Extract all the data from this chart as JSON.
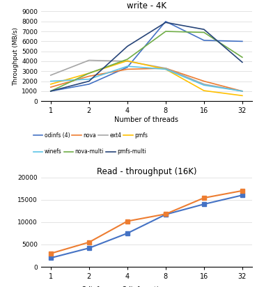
{
  "threads": [
    1,
    2,
    4,
    8,
    16,
    32
  ],
  "write_title": "write - 4K",
  "write_ylabel": "Throughput (MB/s)",
  "write_xlabel": "Number of threads",
  "write_ylim": [
    0,
    9000
  ],
  "write_yticks": [
    0,
    1000,
    2000,
    3000,
    4000,
    5000,
    6000,
    7000,
    8000,
    9000
  ],
  "series": {
    "odinfs (4)": {
      "values": [
        1000,
        1700,
        3400,
        8000,
        6100,
        6000
      ],
      "color": "#4472C4"
    },
    "nova": {
      "values": [
        1400,
        2500,
        3200,
        3300,
        2000,
        1000
      ],
      "color": "#ED7D31"
    },
    "ext4": {
      "values": [
        2600,
        4100,
        4000,
        3300,
        1700,
        1000
      ],
      "color": "#A5A5A5"
    },
    "pmfs": {
      "values": [
        1700,
        2800,
        4050,
        3200,
        1050,
        550
      ],
      "color": "#FFC000"
    },
    "winefs": {
      "values": [
        2000,
        2200,
        3500,
        3200,
        1600,
        1000
      ],
      "color": "#5BC3E6"
    },
    "nova-multi": {
      "values": [
        1000,
        2800,
        4200,
        7000,
        6900,
        4400
      ],
      "color": "#70AD47"
    },
    "pmfs-multi": {
      "values": [
        1000,
        2000,
        5500,
        7900,
        7200,
        3900
      ],
      "color": "#264478"
    }
  },
  "read_title": "Read - throughput (16K)",
  "read_ylim": [
    0,
    20000
  ],
  "read_yticks": [
    0,
    5000,
    10000,
    15000,
    20000
  ],
  "read_series": {
    "Odinfs": {
      "values": [
        2000,
        4200,
        7500,
        11700,
        14000,
        16000
      ],
      "color": "#4472C4",
      "marker": "s"
    },
    "Odinfs-opti": {
      "values": [
        3000,
        5500,
        10200,
        11800,
        15400,
        17000
      ],
      "color": "#ED7D31",
      "marker": "s"
    }
  },
  "bg_color": "#FFFFFF",
  "grid_color": "#D8D8D8"
}
